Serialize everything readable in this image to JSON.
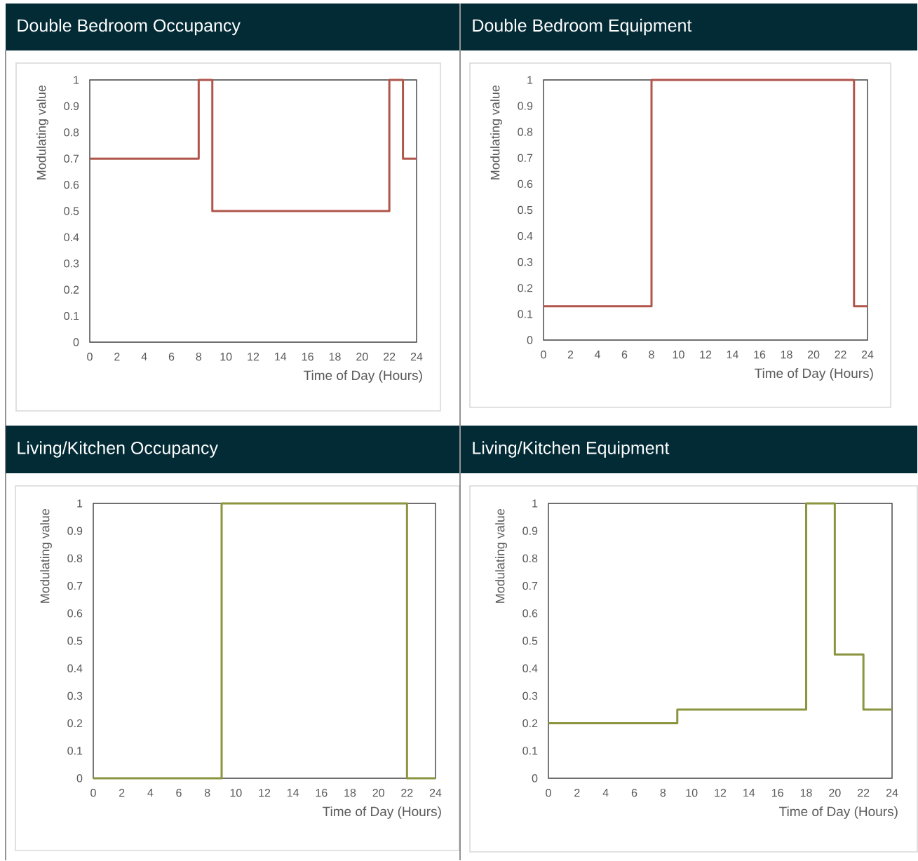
{
  "chart_data": [
    {
      "type": "step",
      "title": "Double Bedroom Occupancy",
      "xlabel": "Time of Day (Hours)",
      "ylabel": "Modulating value",
      "x": [
        0,
        8,
        9,
        22,
        23,
        24
      ],
      "values": [
        0.7,
        1,
        0.5,
        1,
        0.7,
        0.7
      ],
      "color": "#b0554b",
      "xlim": [
        0,
        24
      ],
      "ylim": [
        0,
        1
      ],
      "xticks": [
        0,
        2,
        4,
        6,
        8,
        10,
        12,
        14,
        16,
        18,
        20,
        22,
        24
      ],
      "yticks": [
        0,
        0.1,
        0.2,
        0.3,
        0.4,
        0.5,
        0.6,
        0.7,
        0.8,
        0.9,
        1
      ]
    },
    {
      "type": "step",
      "title": "Double Bedroom Equipment",
      "xlabel": "Time of Day (Hours)",
      "ylabel": "Modulating value",
      "x": [
        0,
        8,
        23,
        24
      ],
      "values": [
        0.13,
        1,
        0.13,
        0.13
      ],
      "color": "#b0554b",
      "xlim": [
        0,
        24
      ],
      "ylim": [
        0,
        1
      ],
      "xticks": [
        0,
        2,
        4,
        6,
        8,
        10,
        12,
        14,
        16,
        18,
        20,
        22,
        24
      ],
      "yticks": [
        0,
        0.1,
        0.2,
        0.3,
        0.4,
        0.5,
        0.6,
        0.7,
        0.8,
        0.9,
        1
      ]
    },
    {
      "type": "step",
      "title": "Living/Kitchen Occupancy",
      "xlabel": "Time of Day (Hours)",
      "ylabel": "Modulating value",
      "x": [
        0,
        9,
        22,
        24
      ],
      "values": [
        0,
        1,
        0,
        0
      ],
      "color": "#8c943f",
      "xlim": [
        0,
        24
      ],
      "ylim": [
        0,
        1
      ],
      "xticks": [
        0,
        2,
        4,
        6,
        8,
        10,
        12,
        14,
        16,
        18,
        20,
        22,
        24
      ],
      "yticks": [
        0,
        0.1,
        0.2,
        0.3,
        0.4,
        0.5,
        0.6,
        0.7,
        0.8,
        0.9,
        1
      ]
    },
    {
      "type": "step",
      "title": "Living/Kitchen Equipment",
      "xlabel": "Time of Day (Hours)",
      "ylabel": "Modulating value",
      "x": [
        0,
        9,
        18,
        20,
        22,
        24
      ],
      "values": [
        0.2,
        0.25,
        1,
        0.45,
        0.25,
        0.25
      ],
      "color": "#8c943f",
      "xlim": [
        0,
        24
      ],
      "ylim": [
        0,
        1
      ],
      "xticks": [
        0,
        2,
        4,
        6,
        8,
        10,
        12,
        14,
        16,
        18,
        20,
        22,
        24
      ],
      "yticks": [
        0,
        0.1,
        0.2,
        0.3,
        0.4,
        0.5,
        0.6,
        0.7,
        0.8,
        0.9,
        1
      ]
    }
  ]
}
